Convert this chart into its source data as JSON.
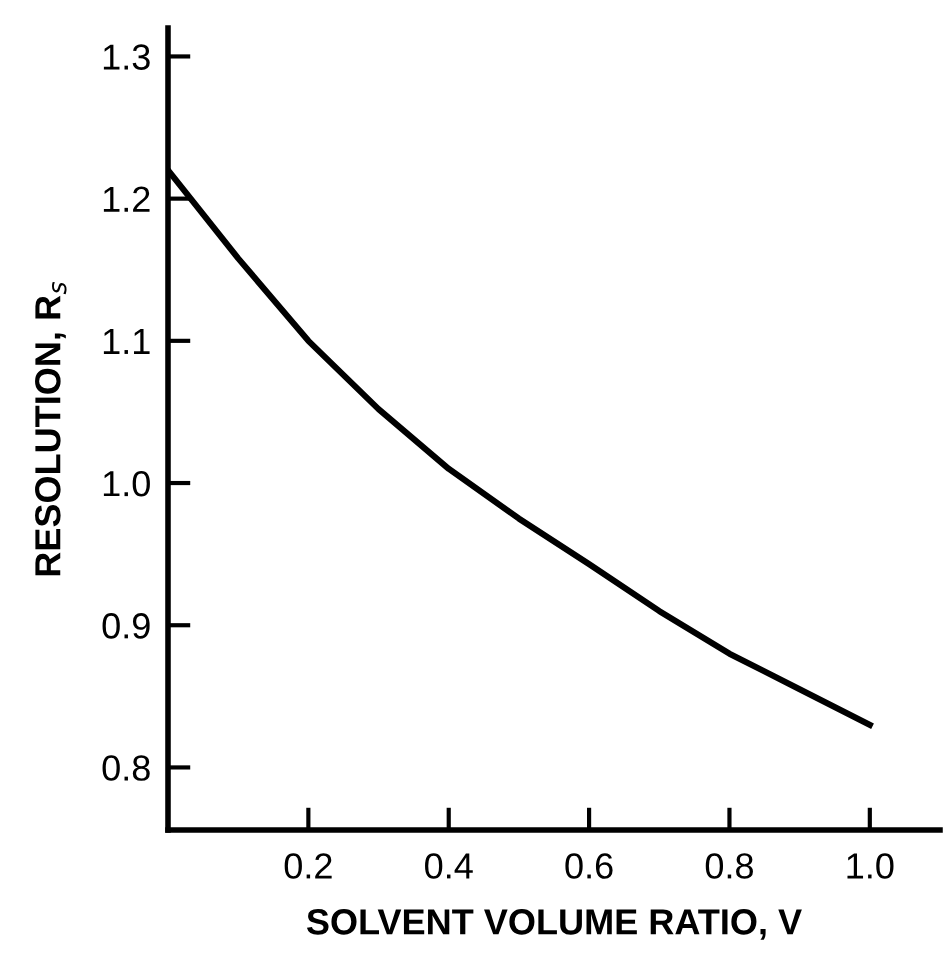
{
  "chart_data": {
    "type": "line",
    "xlabel": "SOLVENT VOLUME RATIO, V",
    "ylabel": "RESOLUTION, R$_{s}$",
    "x": [
      0,
      0.1,
      0.2,
      0.3,
      0.4,
      0.5,
      0.6,
      0.7,
      0.8,
      0.9,
      1.0
    ],
    "series": [
      {
        "color": "#000000",
        "values": [
          1.22,
          1.158,
          1.1,
          1.052,
          1.01,
          0.975,
          0.943,
          0.91,
          0.88,
          0.855,
          0.83
        ]
      }
    ],
    "xlim": [
      0,
      1.1
    ],
    "ylim": [
      0.756,
      1.32
    ],
    "xticks": [
      0.2,
      0.4,
      0.6,
      0.8,
      {
        "value": 1.0,
        "label": "1.0"
      }
    ],
    "yticks": [
      0.8,
      0.9,
      {
        "value": 1.0,
        "label": "1.0"
      },
      1.1,
      1.2,
      1.3
    ],
    "grid": false,
    "legend": false,
    "marker": "none",
    "line_style": "solid"
  }
}
